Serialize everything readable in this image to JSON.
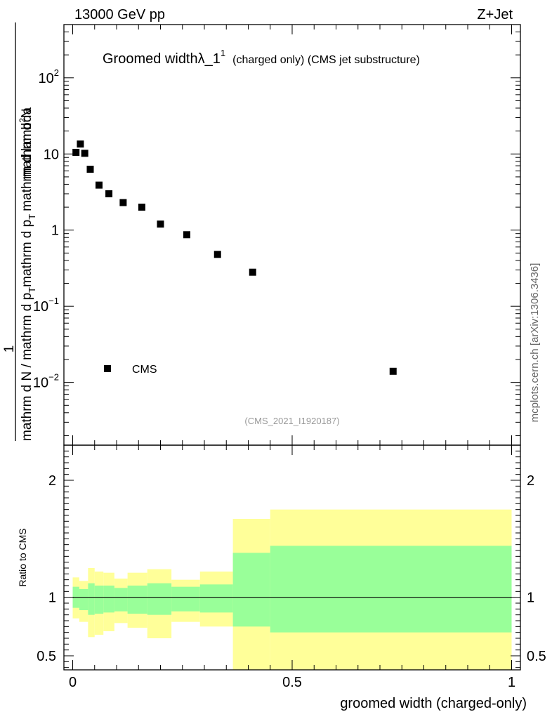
{
  "header": {
    "left": "13000 GeV pp",
    "right": "Z+Jet"
  },
  "side_label": "mcplots.cern.ch [arXiv:1306.3436]",
  "watermark": "(CMS_2021_I1920187)",
  "chart_data": [
    {
      "type": "scatter",
      "title": {
        "main": "Groomed width",
        "symbol": "λ_1",
        "superscript": "1",
        "suffix": "(charged only) (CMS jet substructure)"
      },
      "ylabel": {
        "numerator": "1",
        "line1": "mathrm d N / mathrm d p",
        "line1_sub": "T",
        "line1_tail": "mathrm d p",
        "line1_tail_sub": "T",
        "line1_end": "mathrm d lambda",
        "numerator2": "mathrm d",
        "numerator2_sup": "2",
        "numerator2_end": "N"
      },
      "yscale": "log",
      "xlim": [
        -0.02,
        1.02
      ],
      "ylim": [
        0.0015,
        500
      ],
      "yticks": [
        {
          "value": 100,
          "base": "10",
          "exp": "2"
        },
        {
          "value": 10,
          "base": "10",
          "exp": ""
        },
        {
          "value": 1,
          "base": "1",
          "exp": ""
        },
        {
          "value": 0.1,
          "base": "10",
          "exp": "−1"
        },
        {
          "value": 0.01,
          "base": "10",
          "exp": "−2"
        }
      ],
      "legend": {
        "label": "CMS",
        "position": "bottom-left"
      },
      "series": [
        {
          "name": "CMS",
          "x": [
            0.0075,
            0.0175,
            0.0275,
            0.04,
            0.06,
            0.0825,
            0.115,
            0.1575,
            0.2,
            0.26,
            0.33,
            0.41,
            0.73
          ],
          "y": [
            10.5,
            13.5,
            10.2,
            6.3,
            3.9,
            3.0,
            2.3,
            2.0,
            1.2,
            0.87,
            0.48,
            0.28,
            0.014
          ]
        }
      ]
    },
    {
      "type": "area",
      "ylabel": "Ratio to CMS",
      "xlabel": "groomed width (charged-only)",
      "xlim": [
        -0.02,
        1.02
      ],
      "ylim": [
        0.38,
        2.3
      ],
      "xticks": [
        {
          "value": 0,
          "label": "0"
        },
        {
          "value": 0.5,
          "label": "0.5"
        },
        {
          "value": 1,
          "label": "1"
        }
      ],
      "yticks": [
        {
          "value": 0.5,
          "label": "0.5"
        },
        {
          "value": 1,
          "label": "1"
        },
        {
          "value": 2,
          "label": "2"
        }
      ],
      "colors": {
        "outer": "#ffff99",
        "inner": "#99ff99",
        "line": "#000000"
      },
      "bins": [
        {
          "lo": 0.0,
          "hi": 0.015,
          "in_lo": 0.91,
          "in_hi": 1.09,
          "out_lo": 0.82,
          "out_hi": 1.17
        },
        {
          "lo": 0.015,
          "hi": 0.035,
          "in_lo": 0.89,
          "in_hi": 1.07,
          "out_lo": 0.79,
          "out_hi": 1.14
        },
        {
          "lo": 0.035,
          "hi": 0.05,
          "in_lo": 0.85,
          "in_hi": 1.12,
          "out_lo": 0.66,
          "out_hi": 1.25
        },
        {
          "lo": 0.05,
          "hi": 0.07,
          "in_lo": 0.86,
          "in_hi": 1.1,
          "out_lo": 0.68,
          "out_hi": 1.22
        },
        {
          "lo": 0.07,
          "hi": 0.095,
          "in_lo": 0.87,
          "in_hi": 1.1,
          "out_lo": 0.71,
          "out_hi": 1.21
        },
        {
          "lo": 0.095,
          "hi": 0.125,
          "in_lo": 0.88,
          "in_hi": 1.08,
          "out_lo": 0.78,
          "out_hi": 1.16
        },
        {
          "lo": 0.125,
          "hi": 0.17,
          "in_lo": 0.86,
          "in_hi": 1.1,
          "out_lo": 0.74,
          "out_hi": 1.21
        },
        {
          "lo": 0.17,
          "hi": 0.225,
          "in_lo": 0.85,
          "in_hi": 1.12,
          "out_lo": 0.65,
          "out_hi": 1.24
        },
        {
          "lo": 0.225,
          "hi": 0.29,
          "in_lo": 0.88,
          "in_hi": 1.09,
          "out_lo": 0.79,
          "out_hi": 1.15
        },
        {
          "lo": 0.29,
          "hi": 0.365,
          "in_lo": 0.87,
          "in_hi": 1.11,
          "out_lo": 0.75,
          "out_hi": 1.22
        },
        {
          "lo": 0.365,
          "hi": 0.45,
          "in_lo": 0.75,
          "in_hi": 1.38,
          "out_lo": 0.37,
          "out_hi": 1.67
        },
        {
          "lo": 0.45,
          "hi": 1.0,
          "in_lo": 0.7,
          "in_hi": 1.44,
          "out_lo": 0.37,
          "out_hi": 1.75
        }
      ],
      "reference": 1
    }
  ]
}
